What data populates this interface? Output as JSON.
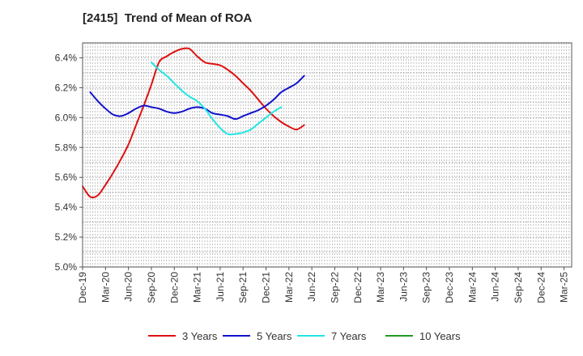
{
  "chart_data": {
    "type": "line",
    "title": "[2415]  Trend of Mean of ROA",
    "xlabel": "",
    "ylabel": "",
    "x_ticks": [
      "Dec-19",
      "Mar-20",
      "Jun-20",
      "Sep-20",
      "Dec-20",
      "Mar-21",
      "Jun-21",
      "Sep-21",
      "Dec-21",
      "Mar-22",
      "Jun-22",
      "Sep-22",
      "Dec-22",
      "Mar-23",
      "Jun-23",
      "Sep-23",
      "Dec-23",
      "Mar-24",
      "Jun-24",
      "Sep-24",
      "Dec-24",
      "Mar-25"
    ],
    "y_ticks": [
      "5.0%",
      "5.2%",
      "5.4%",
      "5.6%",
      "5.8%",
      "6.0%",
      "6.2%",
      "6.4%"
    ],
    "ylim": [
      5.0,
      6.5
    ],
    "grid": true,
    "legend_position": "bottom",
    "series": [
      {
        "name": "3 Years",
        "color": "#dd1111",
        "start_index": 0,
        "values": [
          5.54,
          5.47,
          5.48,
          5.55,
          5.63,
          5.72,
          5.82,
          5.95,
          6.08,
          6.22,
          6.37,
          6.41,
          6.44,
          6.46,
          6.46,
          6.41,
          6.37,
          6.36,
          6.35,
          6.32,
          6.28,
          6.23,
          6.18,
          6.12,
          6.06,
          6.01,
          5.97,
          5.94,
          5.92,
          5.95
        ]
      },
      {
        "name": "5 Years",
        "color": "#1111cc",
        "start_index": 1,
        "values": [
          6.17,
          6.11,
          6.06,
          6.02,
          6.01,
          6.03,
          6.06,
          6.08,
          6.07,
          6.06,
          6.04,
          6.03,
          6.04,
          6.06,
          6.07,
          6.06,
          6.03,
          6.02,
          6.01,
          5.99,
          6.01,
          6.03,
          6.05,
          6.08,
          6.12,
          6.17,
          6.2,
          6.23,
          6.28
        ]
      },
      {
        "name": "7 Years",
        "color": "#22e5e5",
        "start_index": 9,
        "values": [
          6.37,
          6.32,
          6.28,
          6.23,
          6.18,
          6.14,
          6.11,
          6.06,
          5.99,
          5.93,
          5.89,
          5.89,
          5.9,
          5.92,
          5.96,
          6.0,
          6.04,
          6.07
        ]
      },
      {
        "name": "10 Years",
        "color": "#229922",
        "start_index": 0,
        "values": []
      }
    ]
  }
}
